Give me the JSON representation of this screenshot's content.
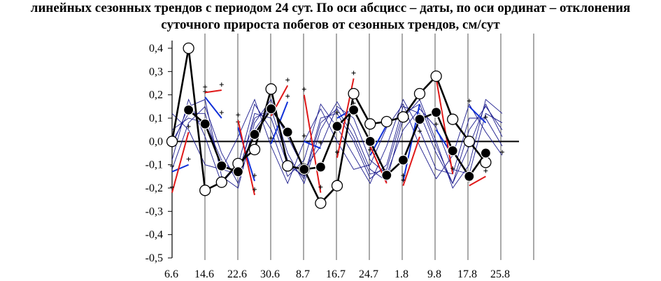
{
  "caption": {
    "line1": "линейных сезонных трендов с периодом 24 сут. По оси абсцисс – даты, по оси ординат – отклонения",
    "line2": "суточного прироста побегов от сезонных трендов, см/сут"
  },
  "chart_data": {
    "type": "line",
    "ylim": [
      -0.5,
      0.4
    ],
    "y_ticks": [
      "0,4",
      "0,3",
      "0,2",
      "0,1",
      "0,0",
      "-0,1",
      "-0,2",
      "-0,3",
      "-0,4",
      "-0,5"
    ],
    "x_tick_labels": [
      "6.6",
      "14.6",
      "22.6",
      "30.6",
      "8.7",
      "16.7",
      "24.7",
      "1.8",
      "9.8",
      "17.8",
      "25.8"
    ],
    "grid": "vertical lines at date ticks",
    "colors": {
      "main": "#000000",
      "thin": "#1a1a8c",
      "blue_dash": "#1030d8",
      "red_dash": "#e01818"
    },
    "x_domain": [
      0,
      20
    ],
    "series": [
      {
        "style": "open-circles",
        "x": [
          0,
          1,
          2,
          3,
          4,
          5,
          6,
          7,
          8,
          9,
          10,
          11,
          12,
          13,
          14,
          15,
          16,
          17,
          18,
          19
        ],
        "values": [
          0.0,
          0.4,
          -0.21,
          -0.175,
          -0.095,
          -0.035,
          0.225,
          -0.105,
          -0.12,
          -0.265,
          -0.19,
          0.205,
          0.075,
          0.085,
          0.105,
          0.205,
          0.28,
          0.095,
          0.0,
          -0.09
        ]
      },
      {
        "style": "filled-circles",
        "x": [
          1,
          2,
          3,
          4,
          5,
          6,
          7,
          8,
          9,
          10,
          11,
          12,
          13,
          14,
          15,
          16,
          17,
          18,
          19
        ],
        "values": [
          0.135,
          0.075,
          -0.105,
          -0.13,
          0.03,
          0.14,
          0.04,
          -0.12,
          -0.11,
          0.065,
          0.135,
          0.0,
          -0.145,
          -0.08,
          0.095,
          0.125,
          -0.04,
          -0.15,
          -0.05
        ]
      },
      {
        "style": "thin",
        "x": [
          0,
          1,
          2,
          3,
          4,
          5,
          6,
          7,
          8,
          9,
          10,
          11,
          12,
          13,
          14,
          15,
          16,
          17,
          18,
          19,
          20
        ],
        "values": [
          -0.02,
          0.15,
          0.18,
          -0.15,
          -0.2,
          0.08,
          0.18,
          -0.05,
          -0.18,
          0.05,
          0.17,
          0.05,
          -0.12,
          -0.17,
          0.1,
          0.18,
          0.0,
          -0.2,
          -0.1,
          0.18,
          0.12
        ]
      },
      {
        "style": "thin",
        "x": [
          0,
          1,
          2,
          3,
          4,
          5,
          6,
          7,
          8,
          9,
          10,
          11,
          12,
          13,
          14,
          15,
          16,
          17,
          18,
          19,
          20
        ],
        "values": [
          0.05,
          0.1,
          0.08,
          -0.08,
          -0.15,
          0.12,
          0.1,
          -0.1,
          -0.15,
          0.1,
          0.12,
          0.0,
          -0.16,
          -0.1,
          0.15,
          0.12,
          -0.05,
          -0.18,
          0.05,
          0.15,
          0.05
        ]
      },
      {
        "style": "thin",
        "x": [
          0,
          1,
          2,
          3,
          4,
          5,
          6,
          7,
          8,
          9,
          10,
          11,
          12,
          13,
          14,
          15,
          16,
          17,
          18,
          19,
          20
        ],
        "values": [
          -0.08,
          0.18,
          0.02,
          -0.18,
          -0.1,
          0.16,
          0.05,
          -0.15,
          -0.08,
          0.16,
          0.06,
          -0.06,
          -0.18,
          -0.02,
          0.18,
          0.05,
          -0.12,
          -0.14,
          0.1,
          0.1,
          -0.02
        ]
      },
      {
        "style": "thin",
        "x": [
          0,
          1,
          2,
          3,
          4,
          5,
          6,
          7,
          8,
          9,
          10,
          11,
          12,
          13,
          14,
          15,
          16,
          17,
          18,
          19,
          20
        ],
        "values": [
          0.12,
          0.05,
          -0.1,
          -0.12,
          0.02,
          0.18,
          -0.02,
          -0.18,
          0.0,
          0.14,
          0.0,
          -0.12,
          -0.1,
          0.06,
          0.16,
          -0.02,
          -0.16,
          -0.06,
          0.16,
          0.04,
          -0.06
        ]
      },
      {
        "style": "thin",
        "x": [
          0,
          1,
          2,
          3,
          4,
          5,
          6,
          7,
          8,
          9,
          10,
          11,
          12,
          13,
          14,
          15,
          16,
          17,
          18,
          19,
          20
        ],
        "values": [
          -0.12,
          0.08,
          0.15,
          -0.05,
          -0.18,
          0.05,
          0.15,
          0.02,
          -0.12,
          -0.02,
          0.15,
          0.1,
          -0.08,
          -0.14,
          0.05,
          0.14,
          0.06,
          -0.12,
          -0.14,
          0.12,
          0.08
        ]
      },
      {
        "style": "thin",
        "x": [
          0,
          1,
          2,
          3,
          4,
          5,
          6,
          7,
          8,
          9,
          10,
          11,
          12,
          13,
          14,
          15,
          16,
          17,
          18,
          19,
          20
        ],
        "values": [
          0.0,
          0.12,
          0.12,
          -0.12,
          -0.14,
          0.1,
          0.14,
          -0.08,
          -0.16,
          0.08,
          0.14,
          0.02,
          -0.14,
          -0.12,
          0.12,
          0.16,
          -0.02,
          -0.18,
          -0.02,
          0.16,
          0.02
        ]
      },
      {
        "style": "blue-dash",
        "x": [
          0,
          1,
          2,
          3,
          4,
          5,
          6,
          7,
          8,
          9,
          10,
          11,
          12,
          13,
          14,
          15,
          16,
          17,
          18,
          19,
          20
        ],
        "values": [
          -0.13,
          -0.1,
          0.19,
          0.1,
          0.06,
          -0.17,
          -0.01,
          0.17,
          0.0,
          -0.03,
          0.1,
          0.14,
          -0.06,
          0.07,
          -0.17,
          0.16,
          0.05,
          -0.06,
          0.15,
          0.08,
          -0.07
        ]
      },
      {
        "style": "red-dash",
        "x": [
          0,
          1,
          2,
          3,
          4,
          5,
          6,
          7,
          8,
          9,
          10,
          11,
          12,
          13,
          14,
          15,
          16,
          17,
          18,
          19
        ],
        "values": [
          -0.22,
          0.04,
          0.21,
          0.22,
          0.09,
          -0.23,
          0.11,
          0.24,
          0.2,
          -0.22,
          -0.07,
          0.27,
          -0.02,
          -0.18,
          -0.19,
          0.02,
          0.27,
          -0.14,
          -0.19,
          -0.15
        ]
      }
    ]
  }
}
